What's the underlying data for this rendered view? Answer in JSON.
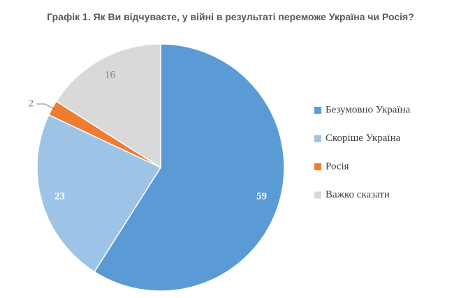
{
  "chart_data": {
    "type": "pie",
    "title": "Графік 1. Як Ви відчуваєте, у війні в результаті переможе Україна чи Росія?",
    "categories": [
      "Безумовно Україна",
      "Скоріше Україна",
      "Росія",
      "Важко сказати"
    ],
    "values": [
      59,
      23,
      2,
      16
    ],
    "colors": [
      "#5b9bd5",
      "#9dc3e6",
      "#ed7d31",
      "#d9d9d9"
    ],
    "label_colors": [
      "#ffffff",
      "#ffffff",
      "#7f7f7f",
      "#7f7f7f"
    ],
    "legend": "right"
  }
}
